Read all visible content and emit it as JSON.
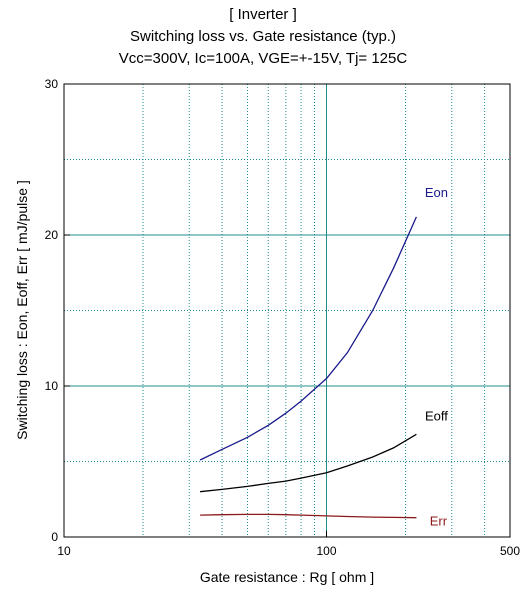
{
  "title_lines": [
    "[ Inverter ]",
    "Switching loss  vs.  Gate resistance (typ.)",
    "Vcc=300V, Ic=100A, VGE=+-15V, Tj= 125C"
  ],
  "chart_data": {
    "type": "line",
    "title": "[ Inverter ] Switching loss  vs.  Gate resistance (typ.) Vcc=300V, Ic=100A, VGE=+-15V, Tj= 125C",
    "xlabel": "Gate resistance  :  Rg  [ ohm ]",
    "ylabel": "Switching loss  :  Eon, Eoff, Err  [ mJ/pulse ]",
    "x_scale": "log",
    "xlim": [
      10,
      500
    ],
    "ylim": [
      0,
      30
    ],
    "x_ticks": [
      "10",
      "100",
      "500"
    ],
    "y_ticks": [
      "0",
      "10",
      "20",
      "30"
    ],
    "grid": true,
    "series": [
      {
        "name": "Eon",
        "color": "#1a1a8c",
        "x": [
          33,
          40,
          50,
          60,
          70,
          80,
          100,
          120,
          150,
          180,
          220
        ],
        "y": [
          5.1,
          5.8,
          6.6,
          7.4,
          8.2,
          9.0,
          10.5,
          12.2,
          15.0,
          17.8,
          21.2
        ]
      },
      {
        "name": "Eoff",
        "color": "#000000",
        "x": [
          33,
          40,
          50,
          60,
          70,
          80,
          100,
          120,
          150,
          180,
          220
        ],
        "y": [
          3.0,
          3.15,
          3.35,
          3.55,
          3.7,
          3.9,
          4.25,
          4.7,
          5.3,
          5.9,
          6.8
        ]
      },
      {
        "name": "Err",
        "color": "#8b1a1a",
        "x": [
          33,
          40,
          50,
          60,
          70,
          80,
          100,
          120,
          150,
          180,
          220
        ],
        "y": [
          1.45,
          1.48,
          1.5,
          1.5,
          1.48,
          1.45,
          1.4,
          1.36,
          1.32,
          1.3,
          1.28
        ]
      }
    ]
  }
}
